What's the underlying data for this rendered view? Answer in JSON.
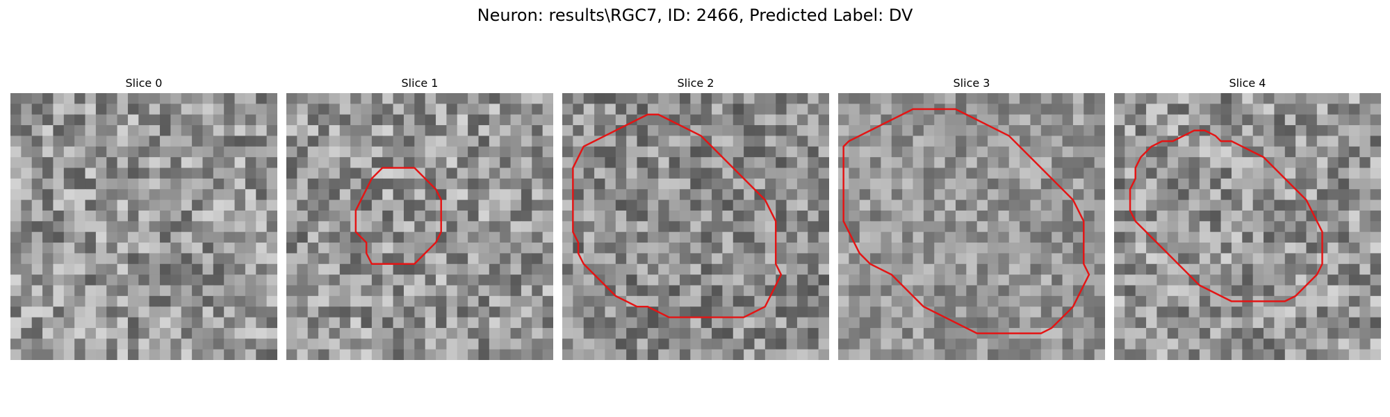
{
  "figure": {
    "title": "Neuron: results\\RGC7, ID: 2466, Predicted Label: DV"
  },
  "contour_color": "#e41414",
  "panels": [
    {
      "title": "Slice 0",
      "contour": []
    },
    {
      "title": "Slice 1",
      "contour": [
        [
          12.0,
          7.0
        ],
        [
          13.0,
          8.0
        ],
        [
          14.0,
          9.0
        ],
        [
          14.5,
          10.0
        ],
        [
          14.5,
          11.0
        ],
        [
          14.5,
          12.0
        ],
        [
          14.5,
          13.0
        ],
        [
          14.0,
          14.0
        ],
        [
          13.0,
          15.0
        ],
        [
          12.0,
          16.0
        ],
        [
          11.0,
          16.0
        ],
        [
          10.0,
          16.0
        ],
        [
          9.0,
          16.0
        ],
        [
          8.0,
          16.0
        ],
        [
          7.5,
          15.0
        ],
        [
          7.5,
          14.0
        ],
        [
          7.0,
          13.5
        ],
        [
          6.5,
          13.0
        ],
        [
          6.5,
          12.0
        ],
        [
          6.5,
          11.0
        ],
        [
          7.0,
          10.0
        ],
        [
          7.5,
          9.0
        ],
        [
          8.0,
          8.0
        ],
        [
          9.0,
          7.0
        ],
        [
          10.0,
          7.0
        ],
        [
          11.0,
          7.0
        ]
      ]
    },
    {
      "title": "Slice 2",
      "contour": [
        [
          10.0,
          2.5
        ],
        [
          11.0,
          3.0
        ],
        [
          12.0,
          3.5
        ],
        [
          13.0,
          4.0
        ],
        [
          14.0,
          5.0
        ],
        [
          15.0,
          6.0
        ],
        [
          16.0,
          7.0
        ],
        [
          17.0,
          8.0
        ],
        [
          18.0,
          9.0
        ],
        [
          19.0,
          10.0
        ],
        [
          19.5,
          11.0
        ],
        [
          20.0,
          12.0
        ],
        [
          20.0,
          13.0
        ],
        [
          20.0,
          14.0
        ],
        [
          20.0,
          15.0
        ],
        [
          20.0,
          16.0
        ],
        [
          20.5,
          17.0
        ],
        [
          20.0,
          18.0
        ],
        [
          19.5,
          19.0
        ],
        [
          19.0,
          20.0
        ],
        [
          18.0,
          20.5
        ],
        [
          17.0,
          21.0
        ],
        [
          16.0,
          21.0
        ],
        [
          15.0,
          21.0
        ],
        [
          14.0,
          21.0
        ],
        [
          13.0,
          21.0
        ],
        [
          12.0,
          21.0
        ],
        [
          11.0,
          21.0
        ],
        [
          10.0,
          21.0
        ],
        [
          9.0,
          20.5
        ],
        [
          8.0,
          20.0
        ],
        [
          7.0,
          20.0
        ],
        [
          6.0,
          19.5
        ],
        [
          5.0,
          19.0
        ],
        [
          4.0,
          18.0
        ],
        [
          3.0,
          17.0
        ],
        [
          2.0,
          16.0
        ],
        [
          1.5,
          15.0
        ],
        [
          1.5,
          14.0
        ],
        [
          1.0,
          13.0
        ],
        [
          1.0,
          12.0
        ],
        [
          1.0,
          11.0
        ],
        [
          1.0,
          10.0
        ],
        [
          1.0,
          9.0
        ],
        [
          1.0,
          8.0
        ],
        [
          1.0,
          7.0
        ],
        [
          1.5,
          6.0
        ],
        [
          2.0,
          5.0
        ],
        [
          3.0,
          4.5
        ],
        [
          4.0,
          4.0
        ],
        [
          5.0,
          3.5
        ],
        [
          6.0,
          3.0
        ],
        [
          7.0,
          2.5
        ],
        [
          8.0,
          2.0
        ],
        [
          9.0,
          2.0
        ]
      ]
    },
    {
      "title": "Slice 3",
      "contour": [
        [
          13.0,
          2.5
        ],
        [
          14.0,
          3.0
        ],
        [
          15.0,
          3.5
        ],
        [
          16.0,
          4.0
        ],
        [
          17.0,
          5.0
        ],
        [
          18.0,
          6.0
        ],
        [
          19.0,
          7.0
        ],
        [
          20.0,
          8.0
        ],
        [
          21.0,
          9.0
        ],
        [
          22.0,
          10.0
        ],
        [
          22.5,
          11.0
        ],
        [
          23.0,
          12.0
        ],
        [
          23.0,
          13.0
        ],
        [
          23.0,
          14.0
        ],
        [
          23.0,
          15.0
        ],
        [
          23.0,
          16.0
        ],
        [
          23.5,
          17.0
        ],
        [
          23.0,
          18.0
        ],
        [
          22.5,
          19.0
        ],
        [
          22.0,
          20.0
        ],
        [
          21.0,
          21.0
        ],
        [
          20.0,
          22.0
        ],
        [
          19.0,
          22.5
        ],
        [
          18.0,
          22.5
        ],
        [
          17.0,
          22.5
        ],
        [
          16.0,
          22.5
        ],
        [
          15.0,
          22.5
        ],
        [
          14.0,
          22.5
        ],
        [
          13.0,
          22.5
        ],
        [
          12.0,
          22.0
        ],
        [
          11.0,
          21.5
        ],
        [
          10.0,
          21.0
        ],
        [
          9.0,
          20.5
        ],
        [
          8.0,
          20.0
        ],
        [
          7.0,
          19.0
        ],
        [
          6.0,
          18.0
        ],
        [
          5.0,
          17.0
        ],
        [
          4.0,
          16.5
        ],
        [
          3.0,
          16.0
        ],
        [
          2.0,
          15.0
        ],
        [
          1.0,
          13.0
        ],
        [
          0.5,
          12.0
        ],
        [
          0.5,
          11.0
        ],
        [
          0.5,
          10.0
        ],
        [
          0.5,
          9.0
        ],
        [
          0.5,
          8.0
        ],
        [
          0.5,
          7.0
        ],
        [
          0.5,
          6.0
        ],
        [
          0.5,
          5.0
        ],
        [
          1.0,
          4.5
        ],
        [
          2.0,
          4.0
        ],
        [
          3.0,
          3.5
        ],
        [
          4.0,
          3.0
        ],
        [
          5.0,
          2.5
        ],
        [
          6.0,
          2.0
        ],
        [
          7.0,
          1.5
        ],
        [
          8.0,
          1.5
        ],
        [
          9.0,
          1.5
        ],
        [
          10.0,
          1.5
        ],
        [
          11.0,
          1.5
        ],
        [
          12.0,
          2.0
        ]
      ]
    },
    {
      "title": "Slice 4",
      "contour": [
        [
          10.0,
          4.5
        ],
        [
          11.0,
          4.5
        ],
        [
          12.0,
          5.0
        ],
        [
          13.0,
          5.5
        ],
        [
          14.0,
          6.0
        ],
        [
          15.0,
          7.0
        ],
        [
          16.0,
          8.0
        ],
        [
          17.0,
          9.0
        ],
        [
          18.0,
          10.0
        ],
        [
          18.5,
          11.0
        ],
        [
          19.0,
          12.0
        ],
        [
          19.5,
          13.0
        ],
        [
          19.5,
          14.0
        ],
        [
          19.5,
          15.0
        ],
        [
          19.5,
          16.0
        ],
        [
          19.0,
          17.0
        ],
        [
          18.0,
          18.0
        ],
        [
          17.0,
          19.0
        ],
        [
          16.0,
          19.5
        ],
        [
          15.0,
          19.5
        ],
        [
          14.0,
          19.5
        ],
        [
          13.0,
          19.5
        ],
        [
          12.0,
          19.5
        ],
        [
          11.0,
          19.5
        ],
        [
          10.0,
          19.0
        ],
        [
          9.0,
          18.5
        ],
        [
          8.0,
          18.0
        ],
        [
          7.0,
          17.0
        ],
        [
          6.0,
          16.0
        ],
        [
          5.0,
          15.0
        ],
        [
          4.0,
          14.0
        ],
        [
          3.0,
          13.0
        ],
        [
          2.0,
          12.0
        ],
        [
          1.5,
          11.0
        ],
        [
          1.5,
          10.0
        ],
        [
          1.5,
          9.0
        ],
        [
          2.0,
          8.0
        ],
        [
          2.0,
          7.0
        ],
        [
          2.5,
          6.0
        ],
        [
          3.5,
          5.0
        ],
        [
          4.5,
          4.5
        ],
        [
          5.5,
          4.5
        ],
        [
          6.5,
          4.0
        ],
        [
          7.5,
          3.5
        ],
        [
          8.5,
          3.5
        ],
        [
          9.5,
          4.0
        ]
      ]
    }
  ]
}
